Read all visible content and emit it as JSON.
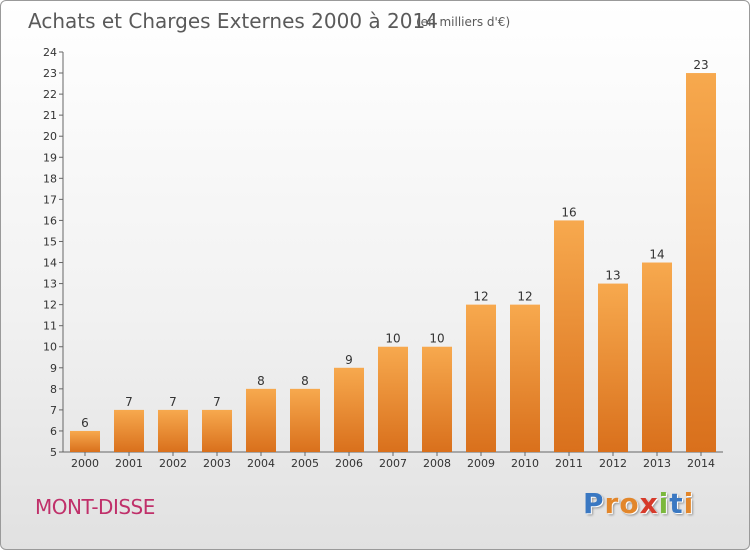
{
  "header": {
    "title": "Achats et Charges Externes 2000 à 2014",
    "unit": "(en milliers d'€)"
  },
  "footer": {
    "place": "MONT-DISSE",
    "brand_letters": [
      "P",
      "r",
      "o",
      "x",
      "i",
      "t",
      "i"
    ]
  },
  "colors": {
    "bar_light": "#f7a94e",
    "bar_dark": "#d9701c",
    "place": "#c0306a",
    "brand": [
      "#3a78c2",
      "#e2862a",
      "#e2862a",
      "#d63a2a",
      "#7bb83c",
      "#3a78c2",
      "#e2862a"
    ]
  },
  "chart_data": {
    "type": "bar",
    "title": "Achats et Charges Externes 2000 à 2014",
    "subtitle": "(en milliers d'€)",
    "categories": [
      "2000",
      "2001",
      "2002",
      "2003",
      "2004",
      "2005",
      "2006",
      "2007",
      "2008",
      "2009",
      "2010",
      "2011",
      "2012",
      "2013",
      "2014"
    ],
    "values": [
      6,
      7,
      7,
      7,
      8,
      8,
      9,
      10,
      10,
      12,
      12,
      16,
      13,
      14,
      23
    ],
    "ylim": [
      5,
      24
    ],
    "yticks": [
      5,
      6,
      7,
      8,
      9,
      10,
      11,
      12,
      13,
      14,
      15,
      16,
      17,
      18,
      19,
      20,
      21,
      22,
      23,
      24
    ],
    "grid": false,
    "legend": "none"
  }
}
